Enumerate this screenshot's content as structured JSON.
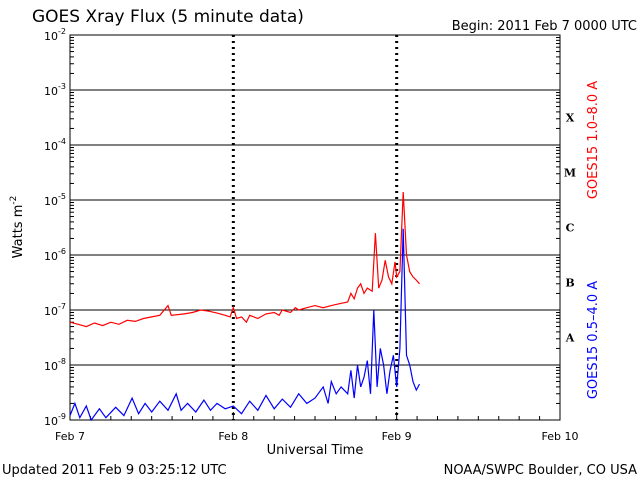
{
  "chart_data": {
    "type": "line",
    "title": "GOES Xray Flux (5 minute data)",
    "begin": "Begin:  2011 Feb 7 0000 UTC",
    "updated": "Updated 2011 Feb  9 03:25:12 UTC",
    "credit": "NOAA/SWPC Boulder, CO USA",
    "xlabel": "Universal Time",
    "ylabel_base": "Watts m",
    "ylabel_exp": "-2",
    "y_scale": "log",
    "ylim": [
      1e-09,
      0.01
    ],
    "xlim_days": [
      0,
      3
    ],
    "x_ticks": [
      {
        "label": "Feb 7",
        "day": 0
      },
      {
        "label": "Feb 8",
        "day": 1
      },
      {
        "label": "Feb 9",
        "day": 2
      },
      {
        "label": "Feb 10",
        "day": 3
      }
    ],
    "y_ticks": [
      {
        "base": "10",
        "exp": "-2",
        "value": 0.01
      },
      {
        "base": "10",
        "exp": "-3",
        "value": 0.001
      },
      {
        "base": "10",
        "exp": "-4",
        "value": 0.0001
      },
      {
        "base": "10",
        "exp": "-5",
        "value": 1e-05
      },
      {
        "base": "10",
        "exp": "-6",
        "value": 1e-06
      },
      {
        "base": "10",
        "exp": "-7",
        "value": 1e-07
      },
      {
        "base": "10",
        "exp": "-8",
        "value": 1e-08
      },
      {
        "base": "10",
        "exp": "-9",
        "value": 1e-09
      }
    ],
    "flare_classes": [
      {
        "label": "X",
        "value": 0.000316
      },
      {
        "label": "M",
        "value": 3.16e-05
      },
      {
        "label": "C",
        "value": 3.16e-06
      },
      {
        "label": "B",
        "value": 3.16e-07
      },
      {
        "label": "A",
        "value": 3.16e-08
      }
    ],
    "grid": true,
    "series": [
      {
        "name": "GOES15 1.0–8.0 A",
        "color": "#ff0000",
        "points": [
          [
            0.0,
            6e-08
          ],
          [
            0.05,
            5.5e-08
          ],
          [
            0.1,
            5e-08
          ],
          [
            0.15,
            5.8e-08
          ],
          [
            0.2,
            5.2e-08
          ],
          [
            0.25,
            6e-08
          ],
          [
            0.3,
            5.5e-08
          ],
          [
            0.35,
            6.5e-08
          ],
          [
            0.4,
            6.2e-08
          ],
          [
            0.45,
            7e-08
          ],
          [
            0.5,
            7.5e-08
          ],
          [
            0.55,
            8e-08
          ],
          [
            0.6,
            1.2e-07
          ],
          [
            0.62,
            8e-08
          ],
          [
            0.7,
            8.5e-08
          ],
          [
            0.75,
            9e-08
          ],
          [
            0.8,
            1e-07
          ],
          [
            0.85,
            9.5e-08
          ],
          [
            0.9,
            8.8e-08
          ],
          [
            0.95,
            8e-08
          ],
          [
            0.98,
            7.5e-08
          ],
          [
            1.0,
            1.1e-07
          ],
          [
            1.02,
            7e-08
          ],
          [
            1.05,
            7.5e-08
          ],
          [
            1.08,
            6e-08
          ],
          [
            1.1,
            8e-08
          ],
          [
            1.15,
            7e-08
          ],
          [
            1.2,
            8.5e-08
          ],
          [
            1.25,
            9e-08
          ],
          [
            1.28,
            8e-08
          ],
          [
            1.3,
            1e-07
          ],
          [
            1.35,
            9e-08
          ],
          [
            1.38,
            1.1e-07
          ],
          [
            1.4,
            1e-07
          ],
          [
            1.45,
            1.1e-07
          ],
          [
            1.5,
            1.2e-07
          ],
          [
            1.55,
            1.1e-07
          ],
          [
            1.6,
            1.2e-07
          ],
          [
            1.65,
            1.3e-07
          ],
          [
            1.7,
            1.4e-07
          ],
          [
            1.72,
            2e-07
          ],
          [
            1.74,
            1.6e-07
          ],
          [
            1.76,
            2.5e-07
          ],
          [
            1.78,
            3e-07
          ],
          [
            1.8,
            2e-07
          ],
          [
            1.82,
            2.5e-07
          ],
          [
            1.85,
            2.2e-07
          ],
          [
            1.87,
            2.5e-06
          ],
          [
            1.89,
            2.5e-07
          ],
          [
            1.91,
            3.5e-07
          ],
          [
            1.93,
            8e-07
          ],
          [
            1.95,
            4e-07
          ],
          [
            1.97,
            3e-07
          ],
          [
            1.99,
            7.5e-07
          ],
          [
            2.0,
            4e-07
          ],
          [
            2.02,
            5e-07
          ],
          [
            2.04,
            1.4e-05
          ],
          [
            2.06,
            1e-06
          ],
          [
            2.08,
            5e-07
          ],
          [
            2.1,
            4e-07
          ],
          [
            2.12,
            3.5e-07
          ],
          [
            2.14,
            3e-07
          ]
        ]
      },
      {
        "name": "GOES15 0.5–4.0 A",
        "color": "#0000ff",
        "points": [
          [
            0.0,
            1.2e-09
          ],
          [
            0.03,
            2e-09
          ],
          [
            0.06,
            1.1e-09
          ],
          [
            0.1,
            1.8e-09
          ],
          [
            0.13,
            1e-09
          ],
          [
            0.18,
            1.6e-09
          ],
          [
            0.22,
            1.1e-09
          ],
          [
            0.28,
            1.7e-09
          ],
          [
            0.33,
            1.2e-09
          ],
          [
            0.38,
            2.5e-09
          ],
          [
            0.42,
            1.3e-09
          ],
          [
            0.46,
            2e-09
          ],
          [
            0.5,
            1.4e-09
          ],
          [
            0.55,
            2.2e-09
          ],
          [
            0.6,
            1.5e-09
          ],
          [
            0.65,
            3e-09
          ],
          [
            0.68,
            1.5e-09
          ],
          [
            0.72,
            2e-09
          ],
          [
            0.77,
            1.4e-09
          ],
          [
            0.82,
            2.3e-09
          ],
          [
            0.86,
            1.5e-09
          ],
          [
            0.9,
            2e-09
          ],
          [
            0.95,
            1.6e-09
          ],
          [
            1.0,
            1.8e-09
          ],
          [
            1.05,
            1.3e-09
          ],
          [
            1.1,
            2.2e-09
          ],
          [
            1.15,
            1.5e-09
          ],
          [
            1.2,
            2.8e-09
          ],
          [
            1.25,
            1.6e-09
          ],
          [
            1.3,
            2.4e-09
          ],
          [
            1.35,
            1.7e-09
          ],
          [
            1.4,
            3e-09
          ],
          [
            1.45,
            2e-09
          ],
          [
            1.5,
            2.5e-09
          ],
          [
            1.55,
            4e-09
          ],
          [
            1.58,
            2e-09
          ],
          [
            1.6,
            5e-09
          ],
          [
            1.63,
            3e-09
          ],
          [
            1.66,
            4e-09
          ],
          [
            1.7,
            3e-09
          ],
          [
            1.72,
            8e-09
          ],
          [
            1.74,
            2.5e-09
          ],
          [
            1.76,
            1e-08
          ],
          [
            1.78,
            4e-09
          ],
          [
            1.8,
            6e-09
          ],
          [
            1.82,
            1.2e-08
          ],
          [
            1.84,
            3e-09
          ],
          [
            1.86,
            1e-07
          ],
          [
            1.88,
            4e-09
          ],
          [
            1.9,
            2e-08
          ],
          [
            1.92,
            1e-08
          ],
          [
            1.94,
            3e-09
          ],
          [
            1.96,
            8e-09
          ],
          [
            1.98,
            1.5e-08
          ],
          [
            2.0,
            4e-09
          ],
          [
            2.02,
            2e-08
          ],
          [
            2.04,
            3e-06
          ],
          [
            2.06,
            1.5e-08
          ],
          [
            2.08,
            1e-08
          ],
          [
            2.1,
            5e-09
          ],
          [
            2.12,
            3.5e-09
          ],
          [
            2.14,
            4.5e-09
          ]
        ]
      }
    ]
  }
}
